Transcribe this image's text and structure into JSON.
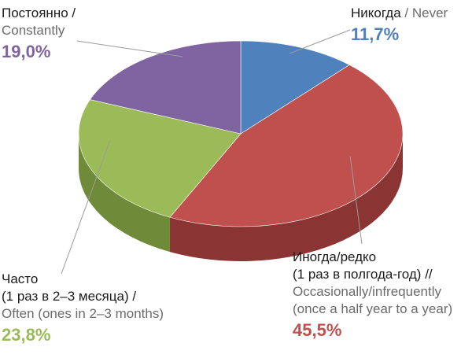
{
  "chart_data": {
    "type": "pie",
    "style": "3d",
    "slices": [
      {
        "label_ru": "Никогда",
        "label_en": "Never",
        "value": 11.7,
        "value_label": "11,7%",
        "color": "#4f81bd",
        "side": "#3a6391"
      },
      {
        "label_ru": "Иногда/редко (1 раз в полгода-год)",
        "label_en": "Occasionally/infrequently (once a half year to a year)",
        "value": 45.5,
        "value_label": "45,5%",
        "color": "#c0504d",
        "side": "#8a3533"
      },
      {
        "label_ru": "Часто (1 раз в 2–3 месяца)",
        "label_en": "Often (ones in 2–3 months)",
        "value": 23.8,
        "value_label": "23,8%",
        "color": "#9bbb59",
        "side": "#6f8a38"
      },
      {
        "label_ru": "Постоянно",
        "label_en": "Constantly",
        "value": 19.0,
        "value_label": "19,0%",
        "color": "#8064a2",
        "side": "#5c4878"
      }
    ]
  },
  "labels": {
    "never": {
      "ru": "Никогда",
      "sep": " / ",
      "en": "Never",
      "pct": "11,7%"
    },
    "occasionally": {
      "ru1": "Иногда/редко",
      "ru2": "(1 раз в полгода-год) //",
      "en1": "Occasionally/infrequently",
      "en2": "(once a half year to a year)",
      "pct": "45,5%"
    },
    "often": {
      "ru1": "Часто",
      "ru2": "(1 раз в 2–3 месяца) /",
      "en1": "Often (ones in 2–3 months)",
      "pct": "23,8%"
    },
    "constantly": {
      "ru1": "Постоянно /",
      "en1": "Constantly",
      "pct": "19,0%"
    }
  }
}
